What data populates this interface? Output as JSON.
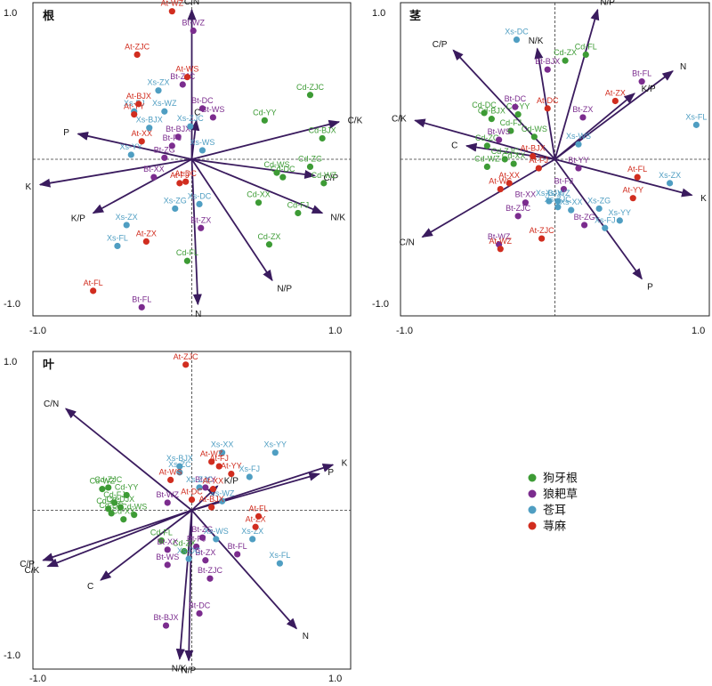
{
  "chart_data": [
    {
      "type": "scatter",
      "title": "根",
      "xlim": [
        -1.0,
        1.0
      ],
      "ylim": [
        -1.0,
        1.0
      ],
      "ticks": {
        "x": [
          "-1.0",
          "1.0"
        ],
        "y": [
          "1.0",
          "-1.0"
        ]
      },
      "vectors": [
        {
          "label": "C/N",
          "x": 0.0,
          "y": 1.0
        },
        {
          "label": "C",
          "x": 0.03,
          "y": 0.26
        },
        {
          "label": "C/K",
          "x": 0.97,
          "y": 0.25
        },
        {
          "label": "C/P",
          "x": 0.81,
          "y": -0.11
        },
        {
          "label": "N/K",
          "x": 0.86,
          "y": -0.36
        },
        {
          "label": "N/P",
          "x": 0.53,
          "y": -0.81
        },
        {
          "label": "N",
          "x": 0.04,
          "y": -0.97
        },
        {
          "label": "K/P",
          "x": -0.65,
          "y": -0.36
        },
        {
          "label": "K",
          "x": -1.0,
          "y": -0.17
        },
        {
          "label": "P",
          "x": -0.75,
          "y": 0.17
        }
      ],
      "series": [
        {
          "name": "狗牙根",
          "color": "#3d9b35",
          "points": [
            {
              "label": "Cd-ZJC",
              "x": 0.78,
              "y": 0.43
            },
            {
              "label": "Cd-YY",
              "x": 0.48,
              "y": 0.26
            },
            {
              "label": "Cd-BJX",
              "x": 0.86,
              "y": 0.14
            },
            {
              "label": "Cd-WS",
              "x": 0.56,
              "y": -0.09
            },
            {
              "label": "Cd-ZG",
              "x": 0.78,
              "y": -0.05
            },
            {
              "label": "Cd-DC",
              "x": 0.6,
              "y": -0.12
            },
            {
              "label": "Cd-WZ",
              "x": 0.87,
              "y": -0.16
            },
            {
              "label": "Cd-XX",
              "x": 0.44,
              "y": -0.29
            },
            {
              "label": "Cd-FJ",
              "x": 0.7,
              "y": -0.36
            },
            {
              "label": "Cd-ZX",
              "x": 0.51,
              "y": -0.57
            },
            {
              "label": "Cd-FL",
              "x": -0.03,
              "y": -0.68
            }
          ]
        },
        {
          "name": "狼耙草",
          "color": "#7b2c8e",
          "points": [
            {
              "label": "Bt-WZ",
              "x": 0.01,
              "y": 0.86
            },
            {
              "label": "Bt-ZJC",
              "x": -0.06,
              "y": 0.5
            },
            {
              "label": "Bt-DC",
              "x": 0.07,
              "y": 0.34
            },
            {
              "label": "Bt-WS",
              "x": 0.14,
              "y": 0.28
            },
            {
              "label": "Bt-BJX",
              "x": -0.09,
              "y": 0.15
            },
            {
              "label": "Bt-FJ",
              "x": -0.13,
              "y": 0.09
            },
            {
              "label": "Bt-ZG",
              "x": -0.18,
              "y": 0.01
            },
            {
              "label": "Bt-XX",
              "x": -0.25,
              "y": -0.12
            },
            {
              "label": "Bt-ZX",
              "x": 0.06,
              "y": -0.46
            },
            {
              "label": "Bt-FL",
              "x": -0.33,
              "y": -0.99
            }
          ]
        },
        {
          "name": "苍耳",
          "color": "#4f9ec2",
          "points": [
            {
              "label": "Xs-WZ",
              "x": -0.18,
              "y": 0.32
            },
            {
              "label": "Xs-ZX",
              "x": -0.22,
              "y": 0.46
            },
            {
              "label": "Xs-FJ",
              "x": -0.38,
              "y": 0.32
            },
            {
              "label": "Xs-BJX",
              "x": -0.28,
              "y": 0.21
            },
            {
              "label": "Xs-ZJC",
              "x": -0.01,
              "y": 0.22
            },
            {
              "label": "Xs-WS",
              "x": 0.07,
              "y": 0.06
            },
            {
              "label": "Xs-YY",
              "x": -0.4,
              "y": 0.03
            },
            {
              "label": "Xs-DC",
              "x": 0.05,
              "y": -0.3
            },
            {
              "label": "Xs-ZG",
              "x": -0.11,
              "y": -0.33
            },
            {
              "label": "Xs-ZX",
              "x": -0.43,
              "y": -0.44
            },
            {
              "label": "Xs-FL",
              "x": -0.49,
              "y": -0.58
            }
          ]
        },
        {
          "name": "荨麻",
          "color": "#d12d1f",
          "points": [
            {
              "label": "At-WZ",
              "x": -0.13,
              "y": 0.99
            },
            {
              "label": "At-ZJC",
              "x": -0.36,
              "y": 0.7
            },
            {
              "label": "At-WS",
              "x": -0.03,
              "y": 0.55
            },
            {
              "label": "At-BJX",
              "x": -0.35,
              "y": 0.37
            },
            {
              "label": "At-YY",
              "x": -0.38,
              "y": 0.3
            },
            {
              "label": "At-XX",
              "x": -0.33,
              "y": 0.12
            },
            {
              "label": "At-DC",
              "x": -0.04,
              "y": -0.15
            },
            {
              "label": "At-FJ",
              "x": -0.08,
              "y": -0.16
            },
            {
              "label": "At-ZX",
              "x": -0.3,
              "y": -0.55
            },
            {
              "label": "At-FL",
              "x": -0.65,
              "y": -0.88
            }
          ]
        }
      ]
    },
    {
      "type": "scatter",
      "title": "茎",
      "xlim": [
        -1.0,
        1.0
      ],
      "ylim": [
        -1.0,
        1.0
      ],
      "ticks": {
        "x": [
          "-1.0",
          "1.0"
        ],
        "y": [
          "1.0",
          "-1.0"
        ]
      },
      "vectors": [
        {
          "label": "N/P",
          "x": 0.29,
          "y": 1.0
        },
        {
          "label": "N/K",
          "x": -0.12,
          "y": 0.74
        },
        {
          "label": "C/P",
          "x": -0.69,
          "y": 0.73
        },
        {
          "label": "C/K",
          "x": -0.95,
          "y": 0.26
        },
        {
          "label": "C",
          "x": -0.6,
          "y": 0.09
        },
        {
          "label": "C/N",
          "x": -0.9,
          "y": -0.52
        },
        {
          "label": "P",
          "x": 0.59,
          "y": -0.8
        },
        {
          "label": "K",
          "x": 0.93,
          "y": -0.24
        },
        {
          "label": "N",
          "x": 0.8,
          "y": 0.59
        },
        {
          "label": "K/P",
          "x": 0.54,
          "y": 0.44
        }
      ],
      "series": [
        {
          "name": "狗牙根",
          "color": "#3d9b35",
          "points": [
            {
              "label": "Cd-FL",
              "x": 0.21,
              "y": 0.7
            },
            {
              "label": "Cd-ZX",
              "x": 0.07,
              "y": 0.66
            },
            {
              "label": "Cd-DC",
              "x": -0.48,
              "y": 0.31
            },
            {
              "label": "Cd-BJX",
              "x": -0.43,
              "y": 0.27
            },
            {
              "label": "Cd-YY",
              "x": -0.25,
              "y": 0.3
            },
            {
              "label": "Cd-FJ",
              "x": -0.3,
              "y": 0.19
            },
            {
              "label": "Cd-WS",
              "x": -0.14,
              "y": 0.15
            },
            {
              "label": "Cd-ZG",
              "x": -0.46,
              "y": 0.09
            },
            {
              "label": "Cd-ZJC",
              "x": -0.34,
              "y": 0.0
            },
            {
              "label": "Cd-XX",
              "x": -0.28,
              "y": -0.03
            },
            {
              "label": "Cd-WZ",
              "x": -0.46,
              "y": -0.05
            }
          ]
        },
        {
          "name": "狼耙草",
          "color": "#7b2c8e",
          "points": [
            {
              "label": "Bt-FL",
              "x": 0.59,
              "y": 0.52
            },
            {
              "label": "Bt-BJX",
              "x": -0.05,
              "y": 0.6
            },
            {
              "label": "Bt-ZX",
              "x": 0.19,
              "y": 0.28
            },
            {
              "label": "Bt-DC",
              "x": -0.27,
              "y": 0.35
            },
            {
              "label": "Bt-WS",
              "x": -0.38,
              "y": 0.13
            },
            {
              "label": "Bt-YY",
              "x": 0.16,
              "y": -0.06
            },
            {
              "label": "Bt-FJ",
              "x": 0.06,
              "y": -0.2
            },
            {
              "label": "Bt-XX",
              "x": -0.2,
              "y": -0.29
            },
            {
              "label": "Bt-ZJC",
              "x": -0.25,
              "y": -0.38
            },
            {
              "label": "Bt-ZG",
              "x": 0.2,
              "y": -0.44
            },
            {
              "label": "Bt-WZ",
              "x": -0.38,
              "y": -0.57
            }
          ]
        },
        {
          "name": "苍耳",
          "color": "#4f9ec2",
          "points": [
            {
              "label": "Xs-DC",
              "x": -0.26,
              "y": 0.8
            },
            {
              "label": "Xs-FL",
              "x": 0.96,
              "y": 0.23
            },
            {
              "label": "Xs-WS",
              "x": 0.16,
              "y": 0.1
            },
            {
              "label": "Xs-ZX",
              "x": 0.78,
              "y": -0.16
            },
            {
              "label": "Xs-BJX",
              "x": -0.04,
              "y": -0.28
            },
            {
              "label": "Xs-WZ",
              "x": 0.02,
              "y": -0.28
            },
            {
              "label": "Xs-ZJC",
              "x": 0.02,
              "y": -0.32
            },
            {
              "label": "Xs-XX",
              "x": 0.11,
              "y": -0.34
            },
            {
              "label": "Xs-ZG",
              "x": 0.3,
              "y": -0.33
            },
            {
              "label": "Xs-YY",
              "x": 0.44,
              "y": -0.41
            },
            {
              "label": "Xs-FJ",
              "x": 0.34,
              "y": -0.46
            }
          ]
        },
        {
          "name": "荨麻",
          "color": "#d12d1f",
          "points": [
            {
              "label": "At-ZX",
              "x": 0.41,
              "y": 0.39
            },
            {
              "label": "At-DC",
              "x": -0.05,
              "y": 0.34
            },
            {
              "label": "At-BJX",
              "x": -0.15,
              "y": 0.02
            },
            {
              "label": "At-FJ",
              "x": -0.11,
              "y": -0.06
            },
            {
              "label": "At-FL",
              "x": 0.56,
              "y": -0.12
            },
            {
              "label": "At-XX",
              "x": -0.31,
              "y": -0.16
            },
            {
              "label": "At-WS",
              "x": -0.37,
              "y": -0.2
            },
            {
              "label": "At-YY",
              "x": 0.53,
              "y": -0.26
            },
            {
              "label": "At-ZJC",
              "x": -0.09,
              "y": -0.53
            },
            {
              "label": "At-WZ",
              "x": -0.37,
              "y": -0.6
            }
          ]
        }
      ]
    },
    {
      "type": "scatter",
      "title": "叶",
      "xlim": [
        -1.0,
        1.0
      ],
      "ylim": [
        -1.0,
        1.0
      ],
      "ticks": {
        "x": [
          "-1.0",
          "1.0"
        ],
        "y": [
          "1.0",
          "-1.0"
        ]
      },
      "vectors": [
        {
          "label": "K",
          "x": 0.93,
          "y": 0.3
        },
        {
          "label": "P",
          "x": 0.84,
          "y": 0.24
        },
        {
          "label": "K/P",
          "x": 0.17,
          "y": 0.16
        },
        {
          "label": "C/N",
          "x": -0.83,
          "y": 0.67
        },
        {
          "label": "C/P",
          "x": -0.98,
          "y": -0.33
        },
        {
          "label": "C/K",
          "x": -0.95,
          "y": -0.37
        },
        {
          "label": "C",
          "x": -0.6,
          "y": -0.46
        },
        {
          "label": "N/K",
          "x": -0.08,
          "y": -0.98
        },
        {
          "label": "N/P",
          "x": -0.02,
          "y": -0.99
        },
        {
          "label": "N",
          "x": 0.69,
          "y": -0.78
        }
      ],
      "series": [
        {
          "name": "狗牙根",
          "color": "#3d9b35",
          "points": [
            {
              "label": "Cd-ZJC",
              "x": -0.55,
              "y": 0.15
            },
            {
              "label": "Cd-WZ",
              "x": -0.59,
              "y": 0.14
            },
            {
              "label": "Cd-YY",
              "x": -0.43,
              "y": 0.1
            },
            {
              "label": "Cd-FJ",
              "x": -0.51,
              "y": 0.05
            },
            {
              "label": "Cd-DJX",
              "x": -0.47,
              "y": 0.02
            },
            {
              "label": "Cd-ZG",
              "x": -0.55,
              "y": 0.01
            },
            {
              "label": "Cd-DC",
              "x": -0.53,
              "y": -0.02
            },
            {
              "label": "Cd-WS",
              "x": -0.38,
              "y": -0.03
            },
            {
              "label": "Cd-XX",
              "x": -0.45,
              "y": -0.06
            },
            {
              "label": "Cd-FL",
              "x": -0.2,
              "y": -0.2
            },
            {
              "label": "Cd-ZX",
              "x": -0.05,
              "y": -0.27
            }
          ]
        },
        {
          "name": "狼耙草",
          "color": "#7b2c8e",
          "points": [
            {
              "label": "Bt-YY",
              "x": 0.09,
              "y": 0.15
            },
            {
              "label": "Bt-WZ",
              "x": -0.16,
              "y": 0.05
            },
            {
              "label": "Bt-ZG",
              "x": 0.07,
              "y": -0.18
            },
            {
              "label": "Bt-FJ",
              "x": 0.03,
              "y": -0.24
            },
            {
              "label": "Bt-XX",
              "x": -0.16,
              "y": -0.26
            },
            {
              "label": "Bt-ZX",
              "x": 0.09,
              "y": -0.33
            },
            {
              "label": "Bt-FL",
              "x": 0.3,
              "y": -0.29
            },
            {
              "label": "Bt-WS",
              "x": -0.16,
              "y": -0.36
            },
            {
              "label": "Bt-ZJC",
              "x": 0.12,
              "y": -0.45
            },
            {
              "label": "Bt-DC",
              "x": 0.05,
              "y": -0.68
            },
            {
              "label": "Bt-BJX",
              "x": -0.17,
              "y": -0.76
            }
          ]
        },
        {
          "name": "苍耳",
          "color": "#4f9ec2",
          "points": [
            {
              "label": "Xs-XX",
              "x": 0.2,
              "y": 0.38
            },
            {
              "label": "Xs-YY",
              "x": 0.55,
              "y": 0.38
            },
            {
              "label": "Xs-BJX",
              "x": -0.08,
              "y": 0.29
            },
            {
              "label": "Xs-ZC",
              "x": -0.08,
              "y": 0.25
            },
            {
              "label": "Xs-FJ",
              "x": 0.38,
              "y": 0.22
            },
            {
              "label": "Xs-ZJC",
              "x": 0.05,
              "y": 0.15
            },
            {
              "label": "Xs-WZ",
              "x": 0.2,
              "y": 0.06
            },
            {
              "label": "Xs-WS",
              "x": 0.16,
              "y": -0.19
            },
            {
              "label": "Xs-ZX",
              "x": 0.4,
              "y": -0.19
            },
            {
              "label": "Xs-DC",
              "x": -0.02,
              "y": -0.32
            },
            {
              "label": "Xs-FL",
              "x": 0.58,
              "y": -0.35
            }
          ]
        },
        {
          "name": "荨麻",
          "color": "#d12d1f",
          "points": [
            {
              "label": "At-ZJC",
              "x": -0.04,
              "y": 0.96
            },
            {
              "label": "At-WZ",
              "x": 0.13,
              "y": 0.32
            },
            {
              "label": "At-FJ",
              "x": 0.18,
              "y": 0.29
            },
            {
              "label": "At-YY",
              "x": 0.26,
              "y": 0.24
            },
            {
              "label": "At-WS",
              "x": -0.14,
              "y": 0.2
            },
            {
              "label": "At-XX",
              "x": 0.14,
              "y": 0.14
            },
            {
              "label": "At-DC",
              "x": 0.0,
              "y": 0.07
            },
            {
              "label": "At-BJX",
              "x": 0.13,
              "y": 0.02
            },
            {
              "label": "At-FL",
              "x": 0.44,
              "y": -0.04
            },
            {
              "label": "At-ZX",
              "x": 0.42,
              "y": -0.11
            }
          ]
        }
      ]
    }
  ],
  "legend": {
    "placement": "right of bottom-left panel",
    "items": [
      {
        "label": "狗牙根",
        "color": "#3d9b35"
      },
      {
        "label": "狼耙草",
        "color": "#7b2c8e"
      },
      {
        "label": "苍耳",
        "color": "#4f9ec2"
      },
      {
        "label": "荨麻",
        "color": "#d12d1f"
      }
    ]
  }
}
